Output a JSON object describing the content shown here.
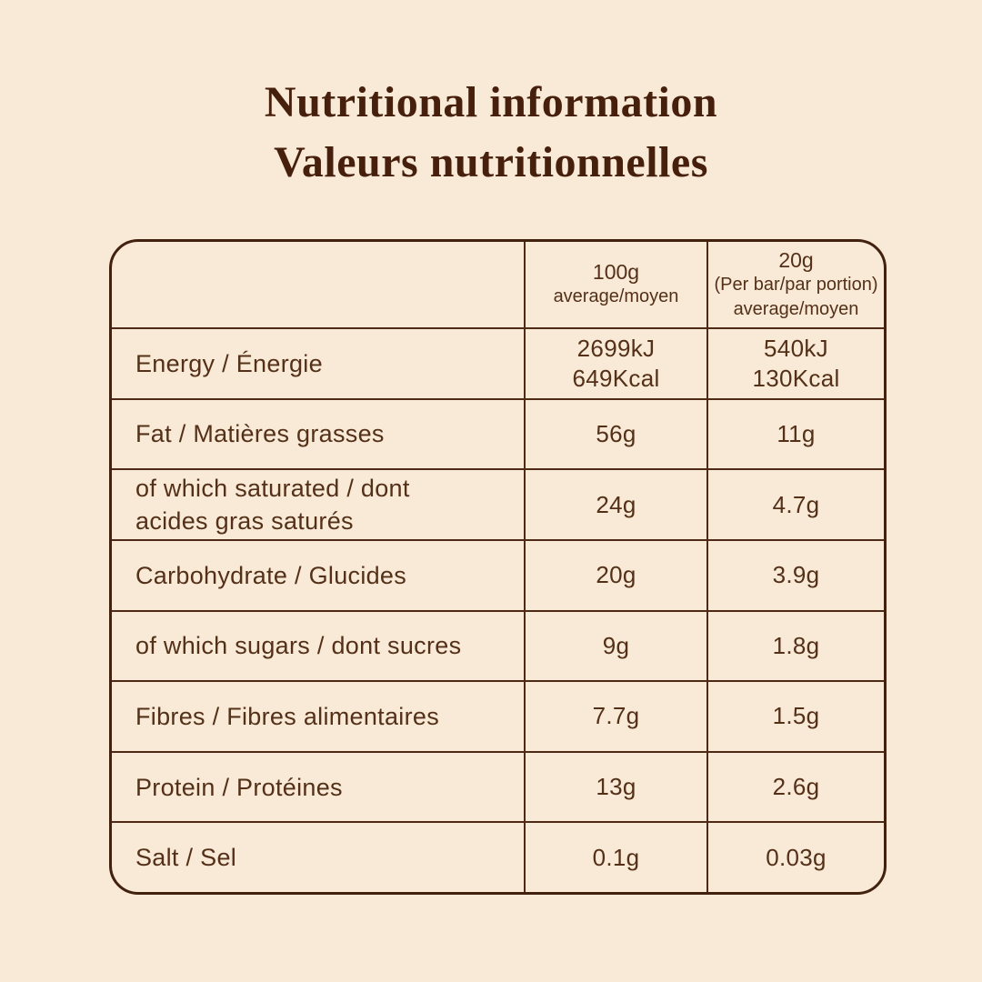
{
  "page": {
    "title_line1": "Nutritional information",
    "title_line2": "Valeurs nutritionnelles"
  },
  "colors": {
    "background": "#f8ead6",
    "table_border_outer": "#42210f",
    "table_border_inner": "#4e2a16",
    "table_text": "#543019",
    "title_text": "#471f0d"
  },
  "table": {
    "header": {
      "col_100g": {
        "line1": "100g",
        "line2": "average/moyen"
      },
      "col_20g": {
        "line1": "20g",
        "line2": "(Per bar/par portion)",
        "line3": "average/moyen"
      }
    },
    "rows": [
      {
        "label": "Energy / Énergie",
        "per100g_line1": "2699kJ",
        "per100g_line2": "649Kcal",
        "per20g_line1": "540kJ",
        "per20g_line2": "130Kcal"
      },
      {
        "label": "Fat / Matières grasses",
        "per100g": "56g",
        "per20g": "11g"
      },
      {
        "label_line1": "of which saturated / dont",
        "label_line2": "acides gras saturés",
        "per100g": "24g",
        "per20g": "4.7g"
      },
      {
        "label": "Carbohydrate / Glucides",
        "per100g": "20g",
        "per20g": "3.9g"
      },
      {
        "label": "of which sugars / dont sucres",
        "per100g": "9g",
        "per20g": "1.8g"
      },
      {
        "label": "Fibres / Fibres alimentaires",
        "per100g": "7.7g",
        "per20g": "1.5g"
      },
      {
        "label": "Protein / Protéines",
        "per100g": "13g",
        "per20g": "2.6g"
      },
      {
        "label": "Salt / Sel",
        "per100g": "0.1g",
        "per20g": "0.03g"
      }
    ]
  }
}
